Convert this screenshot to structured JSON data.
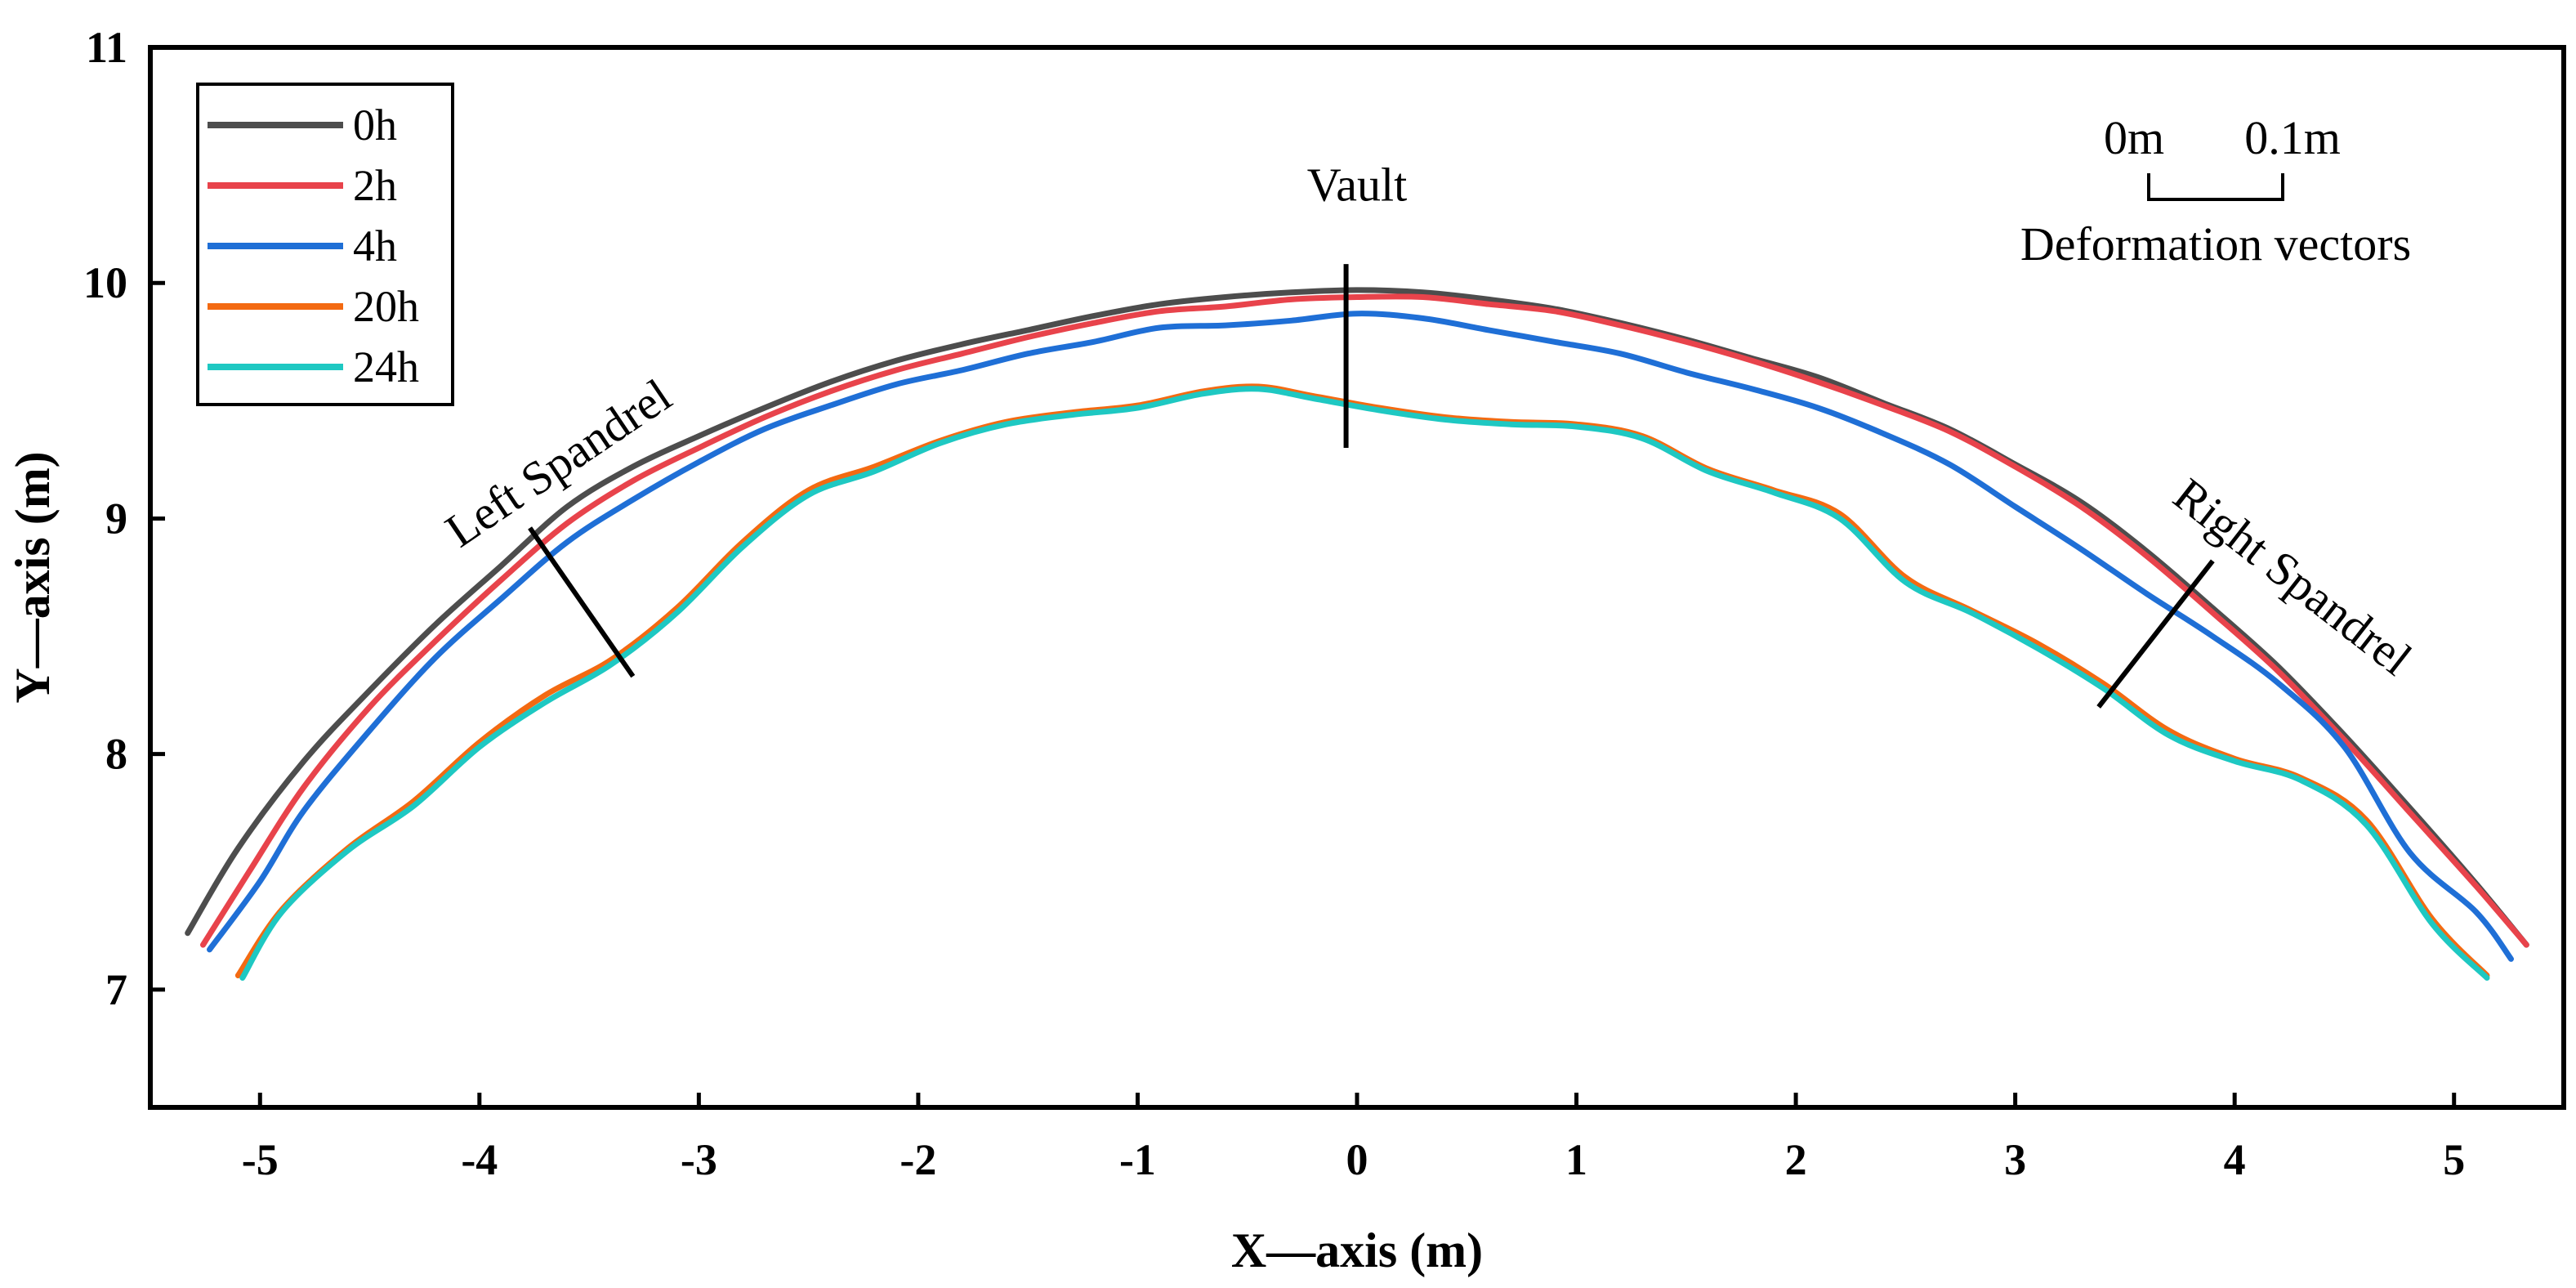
{
  "chart_data": {
    "type": "line",
    "title": "",
    "xlabel": "X—axis (m)",
    "ylabel": "Y—axis (m)",
    "xlim": [
      -5.5,
      5.5
    ],
    "ylim": [
      6.5,
      11
    ],
    "xticks": [
      -5,
      -4,
      -3,
      -2,
      -1,
      0,
      1,
      2,
      3,
      4,
      5
    ],
    "yticks": [
      7,
      8,
      9,
      10,
      11
    ],
    "grid": false,
    "legend": {
      "position": "top-left"
    },
    "series": [
      {
        "name": "0h",
        "color": "#4d4d4d",
        "x": [
          -5.33,
          -5.1,
          -4.8,
          -4.5,
          -4.2,
          -3.9,
          -3.6,
          -3.3,
          -3.0,
          -2.7,
          -2.4,
          -2.1,
          -1.8,
          -1.5,
          -1.2,
          -0.9,
          -0.6,
          -0.3,
          0.0,
          0.3,
          0.6,
          0.9,
          1.2,
          1.5,
          1.8,
          2.1,
          2.4,
          2.7,
          3.0,
          3.3,
          3.6,
          3.9,
          4.2,
          4.5,
          4.8,
          5.1,
          5.33
        ],
        "y": [
          7.24,
          7.6,
          7.97,
          8.27,
          8.55,
          8.8,
          9.05,
          9.22,
          9.35,
          9.47,
          9.58,
          9.67,
          9.74,
          9.8,
          9.86,
          9.91,
          9.94,
          9.96,
          9.97,
          9.96,
          9.93,
          9.89,
          9.83,
          9.76,
          9.68,
          9.6,
          9.49,
          9.38,
          9.23,
          9.07,
          8.86,
          8.62,
          8.37,
          8.08,
          7.77,
          7.45,
          7.19
        ]
      },
      {
        "name": "2h",
        "color": "#e8434b",
        "x": [
          -5.26,
          -5.05,
          -4.8,
          -4.5,
          -4.2,
          -3.9,
          -3.6,
          -3.3,
          -3.0,
          -2.7,
          -2.4,
          -2.1,
          -1.8,
          -1.5,
          -1.2,
          -0.9,
          -0.6,
          -0.3,
          0.0,
          0.3,
          0.6,
          0.9,
          1.2,
          1.5,
          1.8,
          2.1,
          2.4,
          2.7,
          3.0,
          3.3,
          3.6,
          3.9,
          4.2,
          4.5,
          4.8,
          5.1,
          5.33
        ],
        "y": [
          7.19,
          7.5,
          7.86,
          8.2,
          8.48,
          8.74,
          8.98,
          9.16,
          9.3,
          9.43,
          9.54,
          9.63,
          9.7,
          9.77,
          9.83,
          9.88,
          9.9,
          9.93,
          9.94,
          9.94,
          9.91,
          9.88,
          9.82,
          9.75,
          9.67,
          9.58,
          9.48,
          9.37,
          9.22,
          9.05,
          8.84,
          8.6,
          8.35,
          8.06,
          7.75,
          7.44,
          7.19
        ]
      },
      {
        "name": "4h",
        "color": "#1f6fd6",
        "x": [
          -5.23,
          -5.0,
          -4.8,
          -4.5,
          -4.2,
          -3.9,
          -3.6,
          -3.3,
          -3.0,
          -2.7,
          -2.4,
          -2.1,
          -1.8,
          -1.5,
          -1.2,
          -0.9,
          -0.6,
          -0.3,
          0.0,
          0.3,
          0.6,
          0.9,
          1.2,
          1.5,
          1.8,
          2.1,
          2.4,
          2.7,
          3.0,
          3.3,
          3.6,
          3.9,
          4.2,
          4.5,
          4.8,
          5.1,
          5.26
        ],
        "y": [
          7.17,
          7.46,
          7.76,
          8.1,
          8.41,
          8.66,
          8.9,
          9.08,
          9.24,
          9.38,
          9.48,
          9.57,
          9.63,
          9.7,
          9.75,
          9.81,
          9.82,
          9.84,
          9.87,
          9.85,
          9.8,
          9.75,
          9.7,
          9.62,
          9.55,
          9.47,
          9.36,
          9.23,
          9.05,
          8.87,
          8.68,
          8.5,
          8.3,
          8.03,
          7.58,
          7.33,
          7.13
        ]
      },
      {
        "name": "20h",
        "color": "#f36a12",
        "x": [
          -5.1,
          -4.9,
          -4.6,
          -4.3,
          -4.0,
          -3.7,
          -3.4,
          -3.1,
          -2.8,
          -2.5,
          -2.2,
          -1.9,
          -1.6,
          -1.3,
          -1.0,
          -0.7,
          -0.45,
          -0.2,
          0.1,
          0.4,
          0.7,
          1.0,
          1.3,
          1.6,
          1.9,
          2.2,
          2.5,
          2.8,
          3.1,
          3.4,
          3.7,
          4.0,
          4.3,
          4.6,
          4.9,
          5.15
        ],
        "y": [
          7.06,
          7.34,
          7.6,
          7.8,
          8.05,
          8.25,
          8.4,
          8.62,
          8.9,
          9.12,
          9.22,
          9.33,
          9.41,
          9.45,
          9.48,
          9.54,
          9.56,
          9.52,
          9.47,
          9.43,
          9.41,
          9.4,
          9.35,
          9.21,
          9.12,
          9.02,
          8.75,
          8.61,
          8.47,
          8.3,
          8.1,
          7.98,
          7.9,
          7.72,
          7.3,
          7.06
        ]
      },
      {
        "name": "24h",
        "color": "#1ec8c2",
        "x": [
          -5.08,
          -4.9,
          -4.6,
          -4.3,
          -4.0,
          -3.7,
          -3.4,
          -3.1,
          -2.8,
          -2.5,
          -2.2,
          -1.9,
          -1.6,
          -1.3,
          -1.0,
          -0.7,
          -0.45,
          -0.2,
          0.1,
          0.4,
          0.7,
          1.0,
          1.3,
          1.6,
          1.9,
          2.2,
          2.5,
          2.8,
          3.1,
          3.4,
          3.7,
          4.0,
          4.3,
          4.6,
          4.9,
          5.15
        ],
        "y": [
          7.05,
          7.33,
          7.59,
          7.78,
          8.03,
          8.22,
          8.38,
          8.6,
          8.88,
          9.1,
          9.2,
          9.32,
          9.4,
          9.44,
          9.47,
          9.53,
          9.55,
          9.51,
          9.46,
          9.42,
          9.4,
          9.39,
          9.34,
          9.2,
          9.11,
          9.0,
          8.73,
          8.6,
          8.45,
          8.28,
          8.08,
          7.97,
          7.89,
          7.7,
          7.28,
          7.05
        ]
      }
    ],
    "annotations": [
      {
        "label": "Vault",
        "x": 0.0,
        "y": 10.35,
        "line": [
          [
            -0.05,
            10.08
          ],
          [
            -0.05,
            9.3
          ]
        ]
      },
      {
        "label": "Left Spandrel",
        "x": -3.6,
        "y": 9.18,
        "rotation": -34,
        "line": [
          [
            -3.77,
            8.96
          ],
          [
            -3.3,
            8.33
          ]
        ]
      },
      {
        "label": "Right Spandrel",
        "x": 4.22,
        "y": 8.7,
        "rotation": 38,
        "line": [
          [
            3.9,
            8.82
          ],
          [
            3.38,
            8.2
          ]
        ]
      }
    ],
    "scale_bar": {
      "left_label": "0m",
      "right_label": "0.1m",
      "caption": "Deformation vectors"
    }
  }
}
